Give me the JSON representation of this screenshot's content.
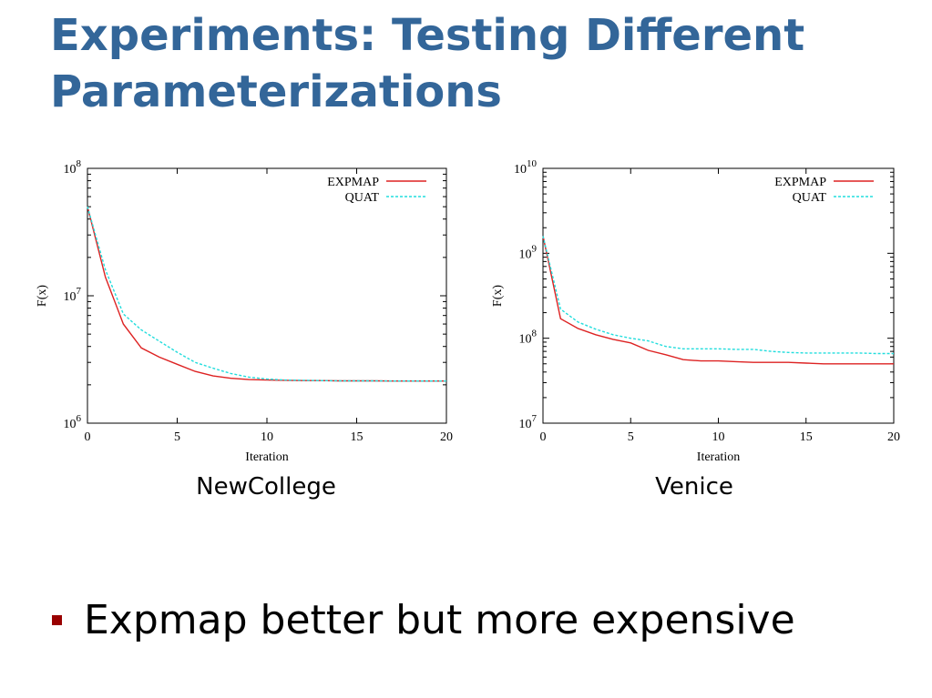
{
  "slide": {
    "title": "Experiments: Testing Different Parameterizations",
    "bullets": [
      "Expmap better but more expensive"
    ],
    "colors": {
      "title": "#336699",
      "bullet_marker": "#990000"
    },
    "bullet_marker_icon": "square-bullet-icon"
  },
  "chart_data": [
    {
      "type": "line",
      "caption": "NewCollege",
      "title": "",
      "xlabel": "Iteration",
      "ylabel": "F(x)",
      "yscale": "log",
      "xlim": [
        0,
        20
      ],
      "ylim": [
        1000000,
        100000000
      ],
      "xticks": [
        "0",
        "5",
        "10",
        "15",
        "20"
      ],
      "yticks": [
        {
          "base": "10",
          "exp": "6",
          "value": 1000000
        },
        {
          "base": "10",
          "exp": "7",
          "value": 10000000
        },
        {
          "base": "10",
          "exp": "8",
          "value": 100000000
        }
      ],
      "legend_position": "top-right",
      "series": [
        {
          "name": "EXPMAP",
          "color": "#dd2222",
          "dash": "solid",
          "x": [
            0,
            1,
            2,
            3,
            4,
            5,
            6,
            7,
            8,
            9,
            10,
            11,
            12,
            13,
            14,
            15,
            16,
            17,
            18,
            19,
            20
          ],
          "y": [
            50000000,
            14000000,
            6000000,
            3900000,
            3300000,
            2900000,
            2550000,
            2350000,
            2250000,
            2200000,
            2180000,
            2170000,
            2160000,
            2160000,
            2150000,
            2150000,
            2150000,
            2140000,
            2140000,
            2140000,
            2140000
          ]
        },
        {
          "name": "QUAT",
          "color": "#22dddd",
          "dash": "dashed",
          "x": [
            0,
            1,
            2,
            3,
            4,
            5,
            6,
            7,
            8,
            9,
            10,
            11,
            12,
            13,
            14,
            15,
            16,
            17,
            18,
            19,
            20
          ],
          "y": [
            50000000,
            16000000,
            7200000,
            5400000,
            4400000,
            3600000,
            3000000,
            2700000,
            2450000,
            2300000,
            2220000,
            2180000,
            2170000,
            2160000,
            2150000,
            2150000,
            2150000,
            2140000,
            2140000,
            2140000,
            2140000
          ]
        }
      ]
    },
    {
      "type": "line",
      "caption": "Venice",
      "title": "",
      "xlabel": "Iteration",
      "ylabel": "F(x)",
      "yscale": "log",
      "xlim": [
        0,
        20
      ],
      "ylim": [
        10000000,
        10000000000
      ],
      "xticks": [
        "0",
        "5",
        "10",
        "15",
        "20"
      ],
      "yticks": [
        {
          "base": "10",
          "exp": "7",
          "value": 10000000
        },
        {
          "base": "10",
          "exp": "8",
          "value": 100000000
        },
        {
          "base": "10",
          "exp": "9",
          "value": 1000000000
        },
        {
          "base": "10",
          "exp": "10",
          "value": 10000000000
        }
      ],
      "legend_position": "top-right",
      "series": [
        {
          "name": "EXPMAP",
          "color": "#dd2222",
          "dash": "solid",
          "x": [
            0,
            1,
            2,
            3,
            4,
            5,
            6,
            7,
            8,
            9,
            10,
            11,
            12,
            13,
            14,
            15,
            16,
            17,
            18,
            19,
            20
          ],
          "y": [
            1600000000,
            170000000,
            130000000,
            110000000,
            97000000,
            88000000,
            72000000,
            64000000,
            56000000,
            54000000,
            54000000,
            53000000,
            52000000,
            52000000,
            52000000,
            51000000,
            50000000,
            50000000,
            50000000,
            50000000,
            50000000
          ]
        },
        {
          "name": "QUAT",
          "color": "#22dddd",
          "dash": "dashed",
          "x": [
            0,
            1,
            2,
            3,
            4,
            5,
            6,
            7,
            8,
            9,
            10,
            11,
            12,
            13,
            14,
            15,
            16,
            17,
            18,
            19,
            20
          ],
          "y": [
            1600000000,
            220000000,
            155000000,
            128000000,
            110000000,
            100000000,
            93000000,
            80000000,
            75000000,
            75000000,
            75000000,
            74000000,
            74000000,
            70000000,
            68000000,
            67000000,
            67000000,
            67000000,
            67000000,
            66000000,
            66000000
          ]
        }
      ]
    }
  ]
}
